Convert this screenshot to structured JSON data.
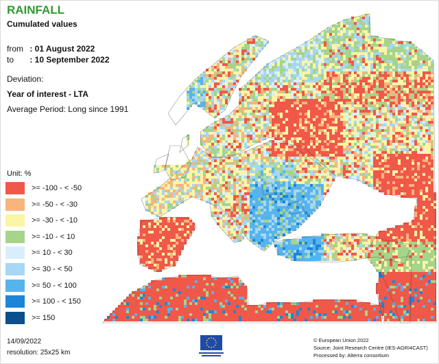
{
  "header": {
    "title": "RAINFALL",
    "subtitle": "Cumulated values"
  },
  "period": {
    "from_label": "from",
    "from_value": ": 01 August 2022",
    "to_label": "to",
    "to_value": ": 10 September 2022"
  },
  "info": {
    "deviation": "Deviation:",
    "year_of_interest": "Year of interest - LTA",
    "average_period": "Average Period: Long since 1991"
  },
  "legend": {
    "unit": "Unit:  %",
    "classes": [
      {
        "label": ">= -100 - < -50",
        "color": "#f0584a"
      },
      {
        "label": ">= -50 - < -30",
        "color": "#f9b47c"
      },
      {
        "label": ">= -30 - < -10",
        "color": "#fbf5a6"
      },
      {
        "label": ">= -10 - < 10",
        "color": "#a6d48a"
      },
      {
        "label": ">= 10 - < 30",
        "color": "#d8eefb"
      },
      {
        "label": ">= 30 - < 50",
        "color": "#a7d7f5"
      },
      {
        "label": ">= 50 - < 100",
        "color": "#57b3ec"
      },
      {
        "label": ">= 100 - < 150",
        "color": "#1c86d8"
      },
      {
        "label": ">= 150",
        "color": "#0b4f8c"
      }
    ]
  },
  "footer": {
    "date": "14/09/2022",
    "resolution": "resolution:  25x25 km",
    "credits": [
      "© European Union 2022",
      "Source: Joint Research Centre (IES-AGRI4CAST)",
      "Processed by: Alterra consortium"
    ]
  }
}
